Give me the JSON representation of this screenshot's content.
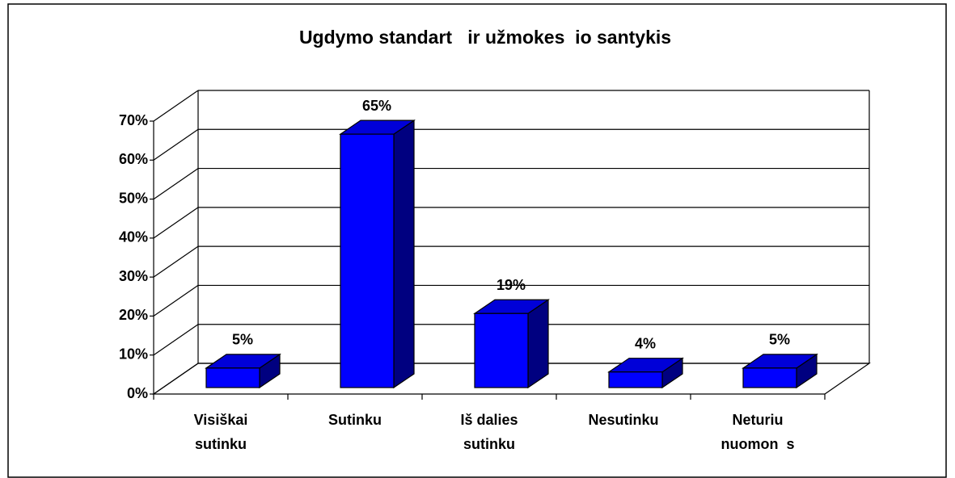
{
  "chart_data": {
    "type": "bar3d",
    "title": "Ugdymo standart   ir užmokes  io santykis",
    "categories": [
      [
        "Visiškai",
        "sutinku"
      ],
      [
        "Sutinku"
      ],
      [
        "Iš dalies",
        "sutinku"
      ],
      [
        "Nesutinku"
      ],
      [
        "Neturiu",
        "nuomon  s"
      ]
    ],
    "values": [
      5,
      65,
      19,
      4,
      5
    ],
    "value_labels": [
      "5%",
      "65%",
      "19%",
      "4%",
      "5%"
    ],
    "color": "#0000ff",
    "ylim": [
      0,
      70
    ],
    "yticks": [
      {
        "value": 0,
        "label": "0%"
      },
      {
        "value": 10,
        "label": "10%"
      },
      {
        "value": 20,
        "label": "20%"
      },
      {
        "value": 30,
        "label": "30%"
      },
      {
        "value": 40,
        "label": "40%"
      },
      {
        "value": 50,
        "label": "50%"
      },
      {
        "value": 60,
        "label": "60%"
      },
      {
        "value": 70,
        "label": "70%"
      }
    ],
    "grid": true
  }
}
